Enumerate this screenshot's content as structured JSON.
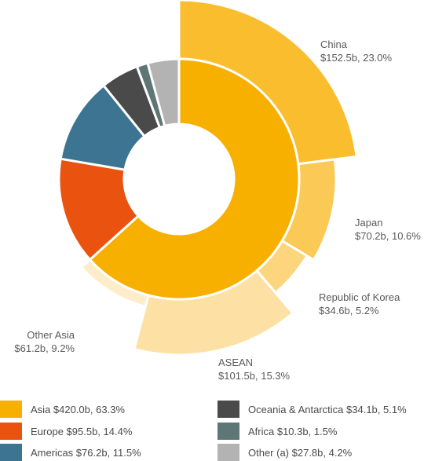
{
  "chart_data": {
    "type": "sunburst",
    "inner_ring": [
      {
        "name": "Asia",
        "value": 420.0,
        "percent": 63.3,
        "label": "Asia $420.0b, 63.3%",
        "color": "#f7b000"
      },
      {
        "name": "Europe",
        "value": 95.5,
        "percent": 14.4,
        "label": "Europe $95.5b, 14.4%",
        "color": "#e9530f"
      },
      {
        "name": "Americas",
        "value": 76.2,
        "percent": 11.5,
        "label": "Americas $76.2b, 11.5%",
        "color": "#3d7491"
      },
      {
        "name": "Oceania & Antarctica",
        "value": 34.1,
        "percent": 5.1,
        "label": "Oceania & Antarctica $34.1b, 5.1%",
        "color": "#4a4a4a"
      },
      {
        "name": "Africa",
        "value": 10.3,
        "percent": 1.5,
        "label": "Africa $10.3b, 1.5%",
        "color": "#5f7676"
      },
      {
        "name": "Other (a)",
        "value": 27.8,
        "percent": 4.2,
        "label": "Other (a) $27.8b, 4.2%",
        "color": "#b3b3b3"
      }
    ],
    "outer_ring": [
      {
        "name": "China",
        "value": 152.5,
        "percent": 23.0,
        "value_label": "$152.5b, 23.0%",
        "color": "#f9bd2e"
      },
      {
        "name": "Japan",
        "value": 70.2,
        "percent": 10.6,
        "value_label": "$70.2b, 10.6%",
        "color": "#fbc955"
      },
      {
        "name": "Republic of Korea",
        "value": 34.6,
        "percent": 5.2,
        "value_label": "$34.6b, 5.2%",
        "color": "#fcd57d"
      },
      {
        "name": "ASEAN",
        "value": 101.5,
        "percent": 15.3,
        "value_label": "$101.5b, 15.3%",
        "color": "#fde1a4"
      },
      {
        "name": "Other Asia",
        "value": 61.2,
        "percent": 9.2,
        "value_label": "$61.2b, 9.2%",
        "color": "#feedcb"
      }
    ]
  }
}
